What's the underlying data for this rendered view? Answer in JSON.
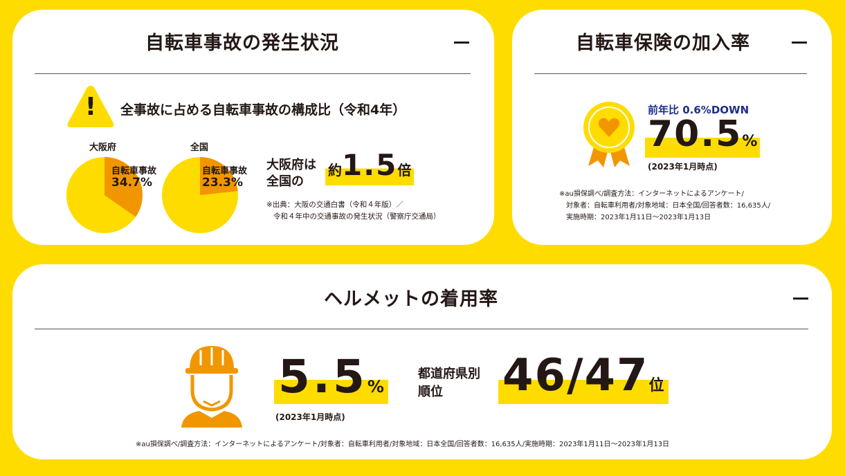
{
  "accident": {
    "title": "自転車事故の発生状況",
    "collapse_symbol": "−",
    "warning_mark": "!",
    "subtitle": "全事故に占める自転車事故の構成比（令和4年）",
    "pies": [
      {
        "region": "大阪府",
        "label": "自転車事故",
        "percent_text": "34.7%",
        "value": 34.7
      },
      {
        "region": "全国",
        "label": "自転車事故",
        "percent_text": "23.3%",
        "value": 23.3
      }
    ],
    "compare_line1": "大阪府は",
    "compare_line2": "全国の",
    "ratio_prefix": "約",
    "ratio_value": "1.5",
    "ratio_suffix": "倍",
    "source_line1": "※出典：大阪の交通白書（令和４年版）／",
    "source_line2": "令和４年中の交通事故の発生状況（警察庁交通局）"
  },
  "insurance": {
    "title": "自転車保険の加入率",
    "collapse_symbol": "−",
    "yoy": "前年比 0.6%DOWN",
    "rate_value": "70.5",
    "rate_unit": "%",
    "as_of": "(2023年1月時点)",
    "note_line1": "※au損保調べ/調査方法：インターネットによるアンケート/",
    "note_line2": "対象者：自転車利用者/対象地域：日本全国/回答者数：16,635人/",
    "note_line3": "実施時期：2023年1月11日〜2023年1月13日"
  },
  "helmet": {
    "title": "ヘルメットの着用率",
    "collapse_symbol": "−",
    "rate_value": "5.5",
    "rate_unit": "%",
    "as_of": "(2023年1月時点)",
    "rank_label_line1": "都道府県別",
    "rank_label_line2": "順位",
    "rank_value": "46/47",
    "rank_unit": "位",
    "note": "※au損保調べ/調査方法：インターネットによるアンケート/対象者：自転車利用者/対象地域：日本全国/回答者数：16,635人/実施時期：2023年1月11日〜2023年1月13日"
  },
  "colors": {
    "background": "#FFDC00",
    "card": "#FFFFFF",
    "pie_base": "#FFDC00",
    "pie_slice": "#F29600",
    "helmet_icon": "#F29600",
    "medal": "#FFDC00",
    "medal_heart": "#F29600",
    "text": "#231815",
    "yoy_text": "#1C2D8C"
  },
  "icons": [
    "warning-icon",
    "medal-icon",
    "helmet-worker-icon"
  ]
}
